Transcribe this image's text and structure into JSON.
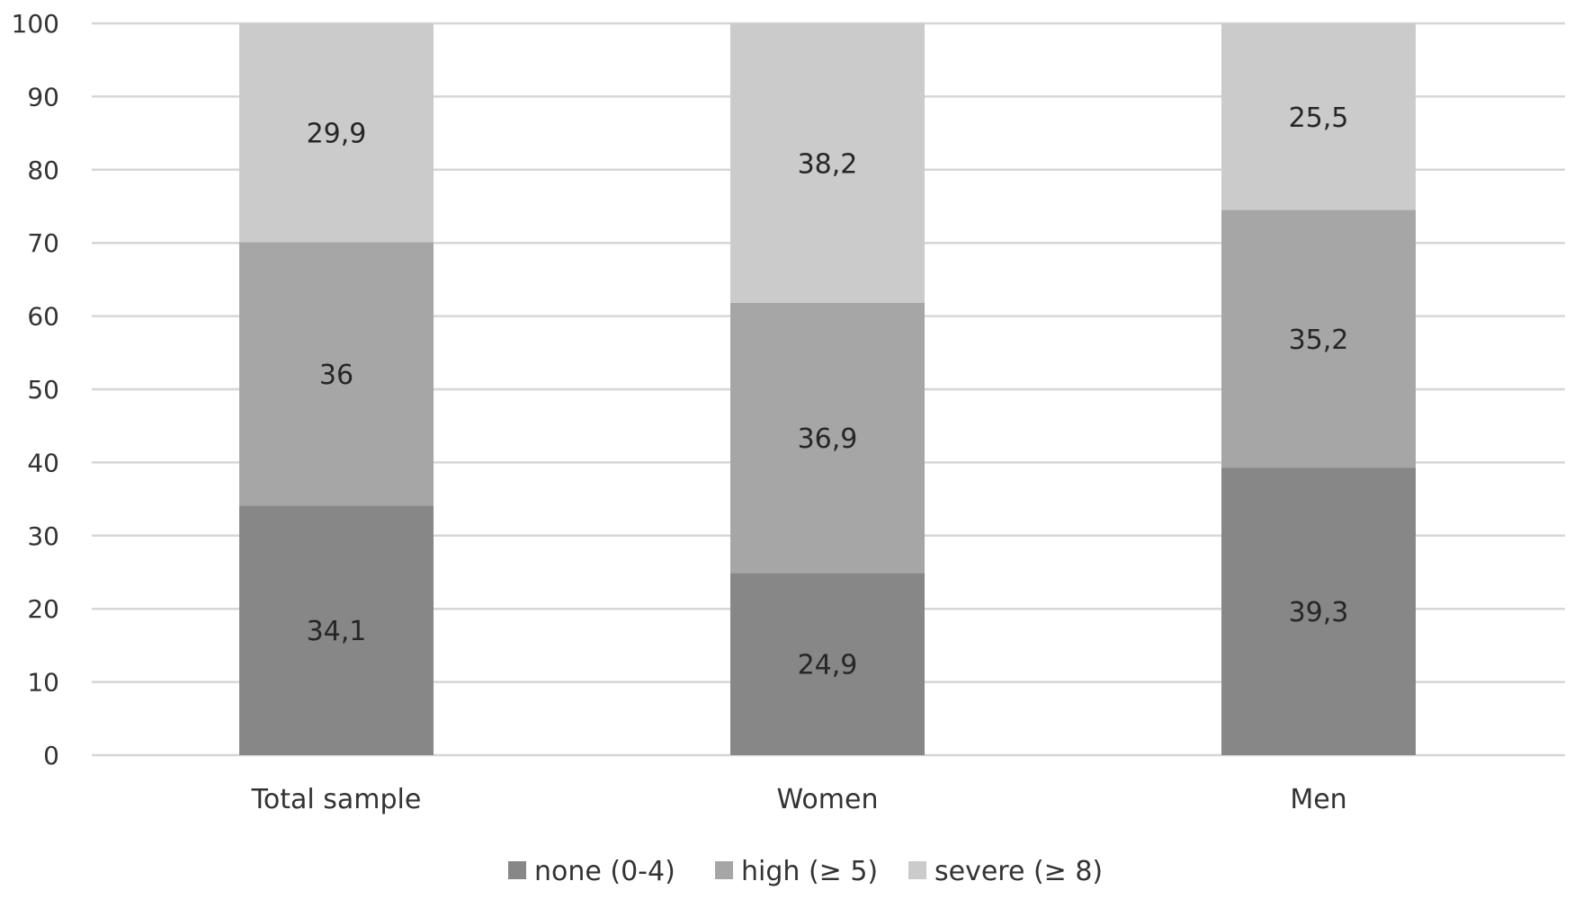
{
  "chart_data": {
    "type": "bar",
    "stacked": true,
    "categories": [
      "Total sample",
      "Women",
      "Men"
    ],
    "series": [
      {
        "name": "none (0-4)",
        "values": [
          34.1,
          24.9,
          39.3
        ],
        "labels": [
          "34,1",
          "24,9",
          "39,3"
        ],
        "color": "#878787"
      },
      {
        "name": "high (≥ 5)",
        "values": [
          36,
          36.9,
          35.2
        ],
        "labels": [
          "36",
          "36,9",
          "35,2"
        ],
        "color": "#a6a6a6"
      },
      {
        "name": "severe (≥ 8)",
        "values": [
          29.9,
          38.2,
          25.5
        ],
        "labels": [
          "29,9",
          "38,2",
          "25,5"
        ],
        "color": "#cbcbcb"
      }
    ],
    "ylim": [
      0,
      100
    ],
    "yticks": [
      0,
      10,
      20,
      30,
      40,
      50,
      60,
      70,
      80,
      90,
      100
    ],
    "ytick_labels": [
      "0",
      "10",
      "20",
      "30",
      "40",
      "50",
      "60",
      "70",
      "80",
      "90",
      "100"
    ],
    "grid": true,
    "legend_position": "bottom",
    "title": "",
    "xlabel": "",
    "ylabel": ""
  }
}
